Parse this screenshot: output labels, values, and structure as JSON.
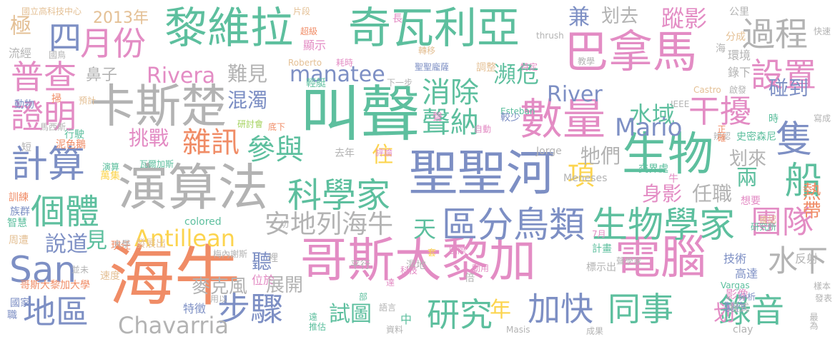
{
  "palette": {
    "orange": "#f08c66",
    "teal": "#5dbf9e",
    "blue": "#7d8fc4",
    "pink": "#e38cc4",
    "green": "#a3d25c",
    "yellow": "#fcd44e",
    "tan": "#e4c095",
    "gray": "#b3b3b3"
  },
  "words": [
    "海牛",
    "哥斯大黎加",
    "叫聲",
    "聖聖河",
    "演算法",
    "黎維拉",
    "奇瓦利亞",
    "巴拿馬",
    "電腦",
    "生物",
    "數量",
    "卡斯楚",
    "區分鳥類",
    "生物學家",
    "科學家",
    "計算",
    "個體",
    "普查",
    "地區",
    "San",
    "錄音",
    "隻",
    "過程",
    "步驟",
    "研究",
    "加快",
    "同事",
    "月份",
    "四",
    "證明",
    "設置",
    "消除",
    "聲納",
    "參與",
    "雜訊",
    "安地列海牛",
    "干擾",
    "水下",
    "團隊",
    "Chavarria",
    "Antillean",
    "manatee",
    "Rivera",
    "水域",
    "River",
    "Mario",
    "兩",
    "船",
    "瀕危",
    "蹤影",
    "挑戰",
    "鼻子",
    "難見",
    "混濁",
    "試圖",
    "項",
    "碰到",
    "划去",
    "划來",
    "牠們",
    "天",
    "住",
    "年",
    "說道",
    "見",
    "兼",
    "身影",
    "任職",
    "划",
    "聽",
    "展開",
    "麥克風",
    "2013年",
    "極",
    "熱帶",
    "特徵",
    "位於",
    "技術",
    "高達",
    "反射",
    "影像",
    "製作",
    "國立高科技中心",
    "片段",
    "超級",
    "顯示",
    "長",
    "耗時",
    "Roberto",
    "轉移",
    "thrush",
    "公里",
    "分成",
    "快速",
    "流經",
    "國鳥",
    "海",
    "聖聖龐薩",
    "調整",
    "特定",
    "環境",
    "錄下",
    "輕艇",
    "下一步",
    "教學",
    "Castro",
    "啟發",
    "動物",
    "掃",
    "預計",
    "Esteban",
    "IEEE",
    "時",
    "寫成",
    "史密森尼",
    "馬西斯",
    "研討會",
    "底下",
    "聲",
    "較少",
    "辨認",
    "正確",
    "短",
    "泥色鵝",
    "行駛",
    "自動",
    "Jorge",
    "去年",
    "評論",
    "演算",
    "瓦爾加斯",
    "萬集",
    "交界處",
    "Meneses",
    "牛",
    "訓練",
    "族群",
    "智慧",
    "周遭",
    "切",
    "colored",
    "發展出",
    "現任",
    "梅內謝斯",
    "大學",
    "濕地",
    "計畫",
    "標示出",
    "7月",
    "想要",
    "研究所",
    "確認",
    "並未",
    "速度",
    "哥斯大黎加大學",
    "科技",
    "平行",
    "套",
    "國際",
    "動用",
    "倍",
    "聲學家",
    "Vargas",
    "用以",
    "裡",
    "部",
    "達",
    "分析",
    "樣本",
    "發表",
    "國家",
    "遠",
    "語言",
    "程式",
    "職",
    "推估",
    "資料",
    "中",
    "Masis",
    "clay",
    "成果",
    "最為"
  ]
}
